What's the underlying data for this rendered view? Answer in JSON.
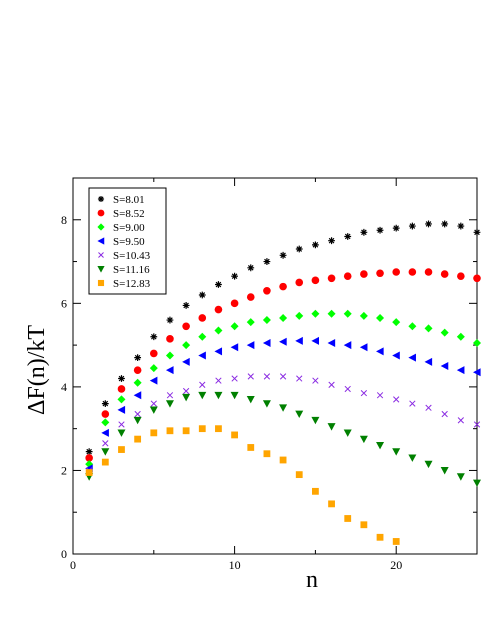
{
  "chart_data": {
    "type": "scatter",
    "title": "",
    "xlabel": "n",
    "ylabel": "ΔF(n)/kT",
    "xlim": [
      0,
      25
    ],
    "ylim": [
      0,
      9
    ],
    "xticks": [
      0,
      10,
      20
    ],
    "yticks": [
      0,
      2,
      4,
      6,
      8
    ],
    "grid": false,
    "legend_position": "top-left",
    "series": [
      {
        "name": "S=8.01",
        "color": "#000000",
        "marker": "star",
        "points": [
          [
            1,
            2.45
          ],
          [
            2,
            3.6
          ],
          [
            3,
            4.2
          ],
          [
            4,
            4.7
          ],
          [
            5,
            5.2
          ],
          [
            6,
            5.6
          ],
          [
            7,
            5.95
          ],
          [
            8,
            6.2
          ],
          [
            9,
            6.45
          ],
          [
            10,
            6.65
          ],
          [
            11,
            6.85
          ],
          [
            12,
            7.0
          ],
          [
            13,
            7.15
          ],
          [
            14,
            7.3
          ],
          [
            15,
            7.4
          ],
          [
            16,
            7.5
          ],
          [
            17,
            7.6
          ],
          [
            18,
            7.7
          ],
          [
            19,
            7.75
          ],
          [
            20,
            7.8
          ],
          [
            21,
            7.85
          ],
          [
            22,
            7.9
          ],
          [
            23,
            7.9
          ],
          [
            24,
            7.85
          ],
          [
            25,
            7.7
          ]
        ]
      },
      {
        "name": "S=8.52",
        "color": "#ff0000",
        "marker": "circle",
        "points": [
          [
            1,
            2.3
          ],
          [
            2,
            3.35
          ],
          [
            3,
            3.95
          ],
          [
            4,
            4.4
          ],
          [
            5,
            4.8
          ],
          [
            6,
            5.15
          ],
          [
            7,
            5.45
          ],
          [
            8,
            5.65
          ],
          [
            9,
            5.85
          ],
          [
            10,
            6.0
          ],
          [
            11,
            6.15
          ],
          [
            12,
            6.3
          ],
          [
            13,
            6.4
          ],
          [
            14,
            6.5
          ],
          [
            15,
            6.55
          ],
          [
            16,
            6.6
          ],
          [
            17,
            6.65
          ],
          [
            18,
            6.7
          ],
          [
            19,
            6.72
          ],
          [
            20,
            6.75
          ],
          [
            21,
            6.75
          ],
          [
            22,
            6.75
          ],
          [
            23,
            6.7
          ],
          [
            24,
            6.65
          ],
          [
            25,
            6.6
          ]
        ]
      },
      {
        "name": "S=9.00",
        "color": "#00ff00",
        "marker": "diamond",
        "points": [
          [
            1,
            2.15
          ],
          [
            2,
            3.15
          ],
          [
            3,
            3.7
          ],
          [
            4,
            4.1
          ],
          [
            5,
            4.45
          ],
          [
            6,
            4.75
          ],
          [
            7,
            5.0
          ],
          [
            8,
            5.2
          ],
          [
            9,
            5.35
          ],
          [
            10,
            5.45
          ],
          [
            11,
            5.55
          ],
          [
            12,
            5.6
          ],
          [
            13,
            5.65
          ],
          [
            14,
            5.7
          ],
          [
            15,
            5.75
          ],
          [
            16,
            5.75
          ],
          [
            17,
            5.75
          ],
          [
            18,
            5.7
          ],
          [
            19,
            5.65
          ],
          [
            20,
            5.55
          ],
          [
            21,
            5.45
          ],
          [
            22,
            5.4
          ],
          [
            23,
            5.3
          ],
          [
            24,
            5.2
          ],
          [
            25,
            5.05
          ]
        ]
      },
      {
        "name": "S=9.50",
        "color": "#0000ff",
        "marker": "triangle-left",
        "points": [
          [
            1,
            2.05
          ],
          [
            2,
            2.9
          ],
          [
            3,
            3.45
          ],
          [
            4,
            3.8
          ],
          [
            5,
            4.15
          ],
          [
            6,
            4.4
          ],
          [
            7,
            4.6
          ],
          [
            8,
            4.75
          ],
          [
            9,
            4.85
          ],
          [
            10,
            4.95
          ],
          [
            11,
            5.0
          ],
          [
            12,
            5.05
          ],
          [
            13,
            5.08
          ],
          [
            14,
            5.1
          ],
          [
            15,
            5.1
          ],
          [
            16,
            5.05
          ],
          [
            17,
            5.0
          ],
          [
            18,
            4.95
          ],
          [
            19,
            4.85
          ],
          [
            20,
            4.75
          ],
          [
            21,
            4.7
          ],
          [
            22,
            4.6
          ],
          [
            23,
            4.5
          ],
          [
            24,
            4.4
          ],
          [
            25,
            4.35
          ]
        ]
      },
      {
        "name": "S=10.43",
        "color": "#8a2be2",
        "marker": "cross",
        "points": [
          [
            1,
            2.0
          ],
          [
            2,
            2.65
          ],
          [
            3,
            3.1
          ],
          [
            4,
            3.35
          ],
          [
            5,
            3.6
          ],
          [
            6,
            3.8
          ],
          [
            7,
            3.9
          ],
          [
            8,
            4.05
          ],
          [
            9,
            4.15
          ],
          [
            10,
            4.2
          ],
          [
            11,
            4.25
          ],
          [
            12,
            4.25
          ],
          [
            13,
            4.25
          ],
          [
            14,
            4.2
          ],
          [
            15,
            4.15
          ],
          [
            16,
            4.05
          ],
          [
            17,
            3.95
          ],
          [
            18,
            3.85
          ],
          [
            19,
            3.8
          ],
          [
            20,
            3.7
          ],
          [
            21,
            3.6
          ],
          [
            22,
            3.5
          ],
          [
            23,
            3.35
          ],
          [
            24,
            3.2
          ],
          [
            25,
            3.1
          ]
        ]
      },
      {
        "name": "S=11.16",
        "color": "#008000",
        "marker": "triangle-down",
        "points": [
          [
            1,
            1.85
          ],
          [
            2,
            2.45
          ],
          [
            3,
            2.9
          ],
          [
            4,
            3.2
          ],
          [
            5,
            3.45
          ],
          [
            6,
            3.6
          ],
          [
            7,
            3.75
          ],
          [
            8,
            3.8
          ],
          [
            9,
            3.8
          ],
          [
            10,
            3.8
          ],
          [
            11,
            3.7
          ],
          [
            12,
            3.6
          ],
          [
            13,
            3.5
          ],
          [
            14,
            3.35
          ],
          [
            15,
            3.2
          ],
          [
            16,
            3.05
          ],
          [
            17,
            2.9
          ],
          [
            18,
            2.75
          ],
          [
            19,
            2.6
          ],
          [
            20,
            2.45
          ],
          [
            21,
            2.3
          ],
          [
            22,
            2.15
          ],
          [
            23,
            2.0
          ],
          [
            24,
            1.85
          ],
          [
            25,
            1.7
          ]
        ]
      },
      {
        "name": "S=12.83",
        "color": "#ffa500",
        "marker": "square",
        "points": [
          [
            1,
            1.95
          ],
          [
            2,
            2.2
          ],
          [
            3,
            2.5
          ],
          [
            4,
            2.75
          ],
          [
            5,
            2.9
          ],
          [
            6,
            2.95
          ],
          [
            7,
            2.95
          ],
          [
            8,
            3.0
          ],
          [
            9,
            3.0
          ],
          [
            10,
            2.85
          ],
          [
            11,
            2.55
          ],
          [
            12,
            2.4
          ],
          [
            13,
            2.25
          ],
          [
            14,
            1.9
          ],
          [
            15,
            1.5
          ],
          [
            16,
            1.2
          ],
          [
            17,
            0.85
          ],
          [
            18,
            0.7
          ],
          [
            19,
            0.4
          ],
          [
            20,
            0.3
          ]
        ]
      }
    ]
  }
}
